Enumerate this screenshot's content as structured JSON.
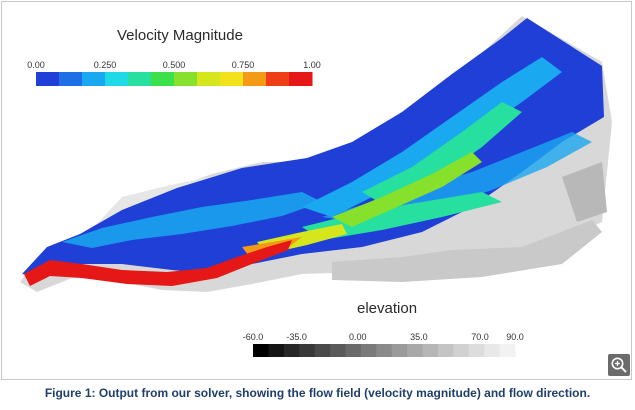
{
  "figure": {
    "caption": "Figure 1: Output from our solver, showing the flow field (velocity magnitude) and flow direction."
  },
  "velocity_legend": {
    "title": "Velocity Magnitude",
    "ticks": [
      "0.00",
      "0.250",
      "0.500",
      "0.750",
      "1.00"
    ],
    "tick_values": [
      0.0,
      0.25,
      0.5,
      0.75,
      1.0
    ],
    "range": [
      0.0,
      1.0
    ],
    "colors": [
      "#1f3fd6",
      "#1e6fe6",
      "#1aa8f0",
      "#1fd9e6",
      "#27e0a0",
      "#3ce04a",
      "#86e02c",
      "#d6e61c",
      "#f2e21b",
      "#f59a16",
      "#ee3e17",
      "#e61717"
    ]
  },
  "elevation_legend": {
    "title": "elevation",
    "ticks": [
      "-60.0",
      "-35.0",
      "0.00",
      "35.0",
      "70.0",
      "90.0"
    ],
    "tick_values": [
      -60,
      -35,
      0,
      35,
      70,
      90
    ],
    "range": [
      -60,
      90
    ],
    "colors": [
      "#000000",
      "#141414",
      "#262626",
      "#383838",
      "#4a4a4a",
      "#5a5a5a",
      "#6a6a6a",
      "#7a7a7a",
      "#8a8a8a",
      "#9a9a9a",
      "#a8a8a8",
      "#b6b6b6",
      "#c4c4c4",
      "#d1d1d1",
      "#dddddd",
      "#e8e8e8",
      "#f2f2f2"
    ]
  },
  "zoom_button": {
    "icon": "zoom-in-icon"
  }
}
